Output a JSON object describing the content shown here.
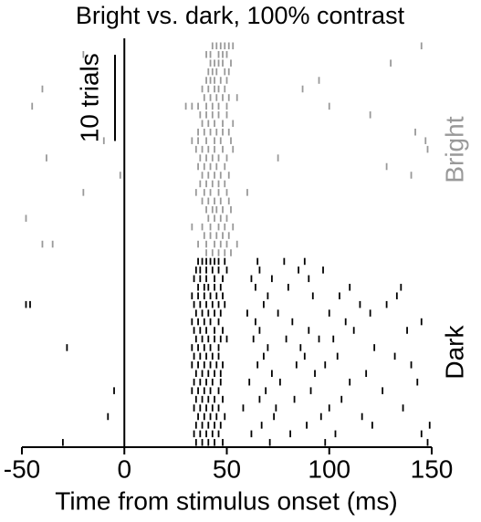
{
  "chart_data": {
    "type": "raster",
    "title": "Bright vs. dark, 100% contrast",
    "x_label": "Time from stimulus onset (ms)",
    "xlim": [
      -50,
      150
    ],
    "xticks": [
      -50,
      0,
      50,
      100,
      150
    ],
    "scale_bar": {
      "label": "10 trials",
      "trials": 10
    },
    "series": [
      {
        "name": "Bright",
        "color": "#999999",
        "trials": [
          [
            43,
            45,
            47,
            49,
            51,
            53,
            145
          ],
          [
            -20,
            40,
            42,
            46,
            48,
            50
          ],
          [
            42,
            44,
            46,
            48,
            52,
            130
          ],
          [
            41,
            43,
            45,
            49,
            51
          ],
          [
            40,
            42,
            44,
            47,
            50,
            95
          ],
          [
            -40,
            38,
            41,
            44,
            46,
            49,
            87
          ],
          [
            39,
            42,
            45,
            48,
            51,
            55
          ],
          [
            -45,
            30,
            33,
            36,
            40,
            43,
            46,
            50,
            100
          ],
          [
            37,
            40,
            43,
            46,
            50,
            120
          ],
          [
            38,
            41,
            44,
            48,
            53
          ],
          [
            36,
            39,
            42,
            45,
            48,
            51,
            142
          ],
          [
            -10,
            33,
            36,
            40,
            44,
            47,
            52,
            147
          ],
          [
            35,
            38,
            41,
            44,
            48,
            53,
            148
          ],
          [
            -38,
            37,
            40,
            43,
            46,
            50,
            75
          ],
          [
            36,
            39,
            42,
            45,
            49,
            128
          ],
          [
            -2,
            38,
            41,
            44,
            47,
            51,
            140
          ],
          [
            37,
            40,
            43,
            46,
            49
          ],
          [
            -20,
            35,
            39,
            42,
            46,
            50,
            60
          ],
          [
            38,
            41,
            44,
            47,
            51
          ],
          [
            40,
            43,
            45,
            48,
            52
          ],
          [
            -48,
            41,
            44,
            47,
            50
          ],
          [
            33,
            38,
            42,
            46,
            49,
            53
          ],
          [
            39,
            42,
            45,
            48,
            51
          ],
          [
            -40,
            -35,
            36,
            40,
            44,
            47,
            50,
            55
          ],
          [
            40,
            43,
            46,
            49,
            52
          ]
        ]
      },
      {
        "name": "Dark",
        "color": "#000000",
        "trials": [
          [
            36,
            38,
            40,
            42,
            44,
            46,
            49,
            65,
            78,
            88
          ],
          [
            35,
            37,
            40,
            43,
            46,
            50,
            66,
            85,
            97
          ],
          [
            34,
            37,
            40,
            44,
            48,
            62,
            72,
            90
          ],
          [
            36,
            39,
            41,
            44,
            47,
            64,
            80,
            110,
            135
          ],
          [
            33,
            36,
            39,
            42,
            45,
            48,
            70,
            92,
            105,
            133
          ],
          [
            -48,
            -46,
            34,
            37,
            40,
            43,
            46,
            49,
            68,
            115,
            128
          ],
          [
            35,
            38,
            41,
            44,
            47,
            60,
            75,
            100,
            120
          ],
          [
            33,
            36,
            39,
            42,
            46,
            64,
            82,
            108,
            145
          ],
          [
            34,
            37,
            40,
            44,
            48,
            66,
            90,
            112,
            138
          ],
          [
            35,
            38,
            41,
            44,
            47,
            50,
            63,
            79,
            95,
            102
          ],
          [
            -28,
            33,
            36,
            39,
            42,
            46,
            70,
            86,
            122
          ],
          [
            34,
            37,
            40,
            43,
            46,
            68,
            88,
            104,
            132
          ],
          [
            33,
            36,
            39,
            42,
            45,
            48,
            65,
            84,
            98,
            140
          ],
          [
            35,
            38,
            41,
            44,
            47,
            72,
            93,
            118
          ],
          [
            34,
            37,
            40,
            43,
            47,
            61,
            76,
            110,
            143
          ],
          [
            -5,
            33,
            36,
            39,
            42,
            46,
            69,
            91,
            126
          ],
          [
            35,
            38,
            41,
            44,
            48,
            66,
            83,
            106
          ],
          [
            34,
            37,
            40,
            43,
            46,
            58,
            74,
            100,
            136
          ],
          [
            -8,
            36,
            39,
            42,
            45,
            49,
            73,
            96,
            116
          ],
          [
            35,
            38,
            41,
            44,
            47,
            67,
            89,
            121,
            149
          ],
          [
            34,
            37,
            40,
            43,
            46,
            62,
            81,
            103,
            145
          ],
          [
            -30,
            35,
            38,
            41,
            44,
            48,
            71,
            98,
            148
          ]
        ]
      }
    ]
  }
}
